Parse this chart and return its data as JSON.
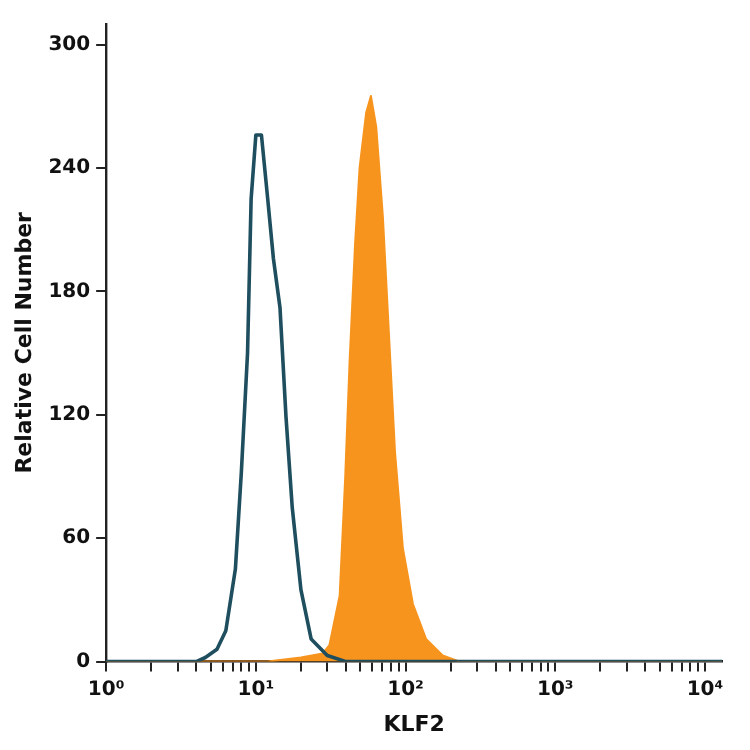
{
  "chart_data": {
    "type": "area",
    "xlabel": "KLF2",
    "ylabel": "Relative Cell Number",
    "log": "x",
    "grid": false,
    "legend": false,
    "marker": "none",
    "xlim": [
      1,
      13000
    ],
    "ylim": [
      0,
      310
    ],
    "xticks": [
      {
        "value": 1,
        "label": "10⁰"
      },
      {
        "value": 2,
        "label": null
      },
      {
        "value": 3,
        "label": null
      },
      {
        "value": 4,
        "label": null
      },
      {
        "value": 5,
        "label": null
      },
      {
        "value": 6,
        "label": null
      },
      {
        "value": 7,
        "label": null
      },
      {
        "value": 8,
        "label": null
      },
      {
        "value": 9,
        "label": null
      },
      {
        "value": 10,
        "label": "10¹"
      },
      {
        "value": 20,
        "label": null
      },
      {
        "value": 30,
        "label": null
      },
      {
        "value": 40,
        "label": null
      },
      {
        "value": 50,
        "label": null
      },
      {
        "value": 60,
        "label": null
      },
      {
        "value": 70,
        "label": null
      },
      {
        "value": 80,
        "label": null
      },
      {
        "value": 90,
        "label": null
      },
      {
        "value": 100,
        "label": "10²"
      },
      {
        "value": 200,
        "label": null
      },
      {
        "value": 300,
        "label": null
      },
      {
        "value": 400,
        "label": null
      },
      {
        "value": 500,
        "label": null
      },
      {
        "value": 600,
        "label": null
      },
      {
        "value": 700,
        "label": null
      },
      {
        "value": 800,
        "label": null
      },
      {
        "value": 900,
        "label": null
      },
      {
        "value": 1000,
        "label": "10³"
      },
      {
        "value": 2000,
        "label": null
      },
      {
        "value": 3000,
        "label": null
      },
      {
        "value": 4000,
        "label": null
      },
      {
        "value": 5000,
        "label": null
      },
      {
        "value": 6000,
        "label": null
      },
      {
        "value": 7000,
        "label": null
      },
      {
        "value": 8000,
        "label": null
      },
      {
        "value": 9000,
        "label": null
      },
      {
        "value": 10000,
        "label": "10⁴"
      }
    ],
    "yticks": [
      0,
      60,
      120,
      180,
      240,
      300
    ],
    "series": [
      {
        "type": "line",
        "color": "#1f4e5f",
        "x": [
          1,
          4,
          4.6,
          5.5,
          6.3,
          7.3,
          8,
          8.8,
          9.3,
          10,
          10.9,
          12,
          13.1,
          14.5,
          15.9,
          17.5,
          20,
          23.4,
          30,
          40,
          13000
        ],
        "values": [
          0,
          0,
          2,
          6,
          15,
          45,
          92,
          150,
          225,
          256,
          256,
          225,
          196,
          172,
          119,
          75,
          35,
          11,
          3,
          0,
          0
        ]
      },
      {
        "color": "#f7941d",
        "x": [
          1,
          12,
          20,
          28,
          31,
          36.3,
          39.5,
          42.3,
          46,
          49.3,
          54.6,
          58.7,
          63.7,
          70.6,
          76.6,
          85,
          96,
          112,
          137,
          177,
          230,
          13000
        ],
        "values": [
          0,
          0,
          2,
          4,
          8,
          32,
          89,
          146,
          203,
          240,
          267,
          275,
          260,
          216,
          166,
          102,
          55,
          28,
          11,
          3,
          0,
          0
        ]
      }
    ]
  }
}
